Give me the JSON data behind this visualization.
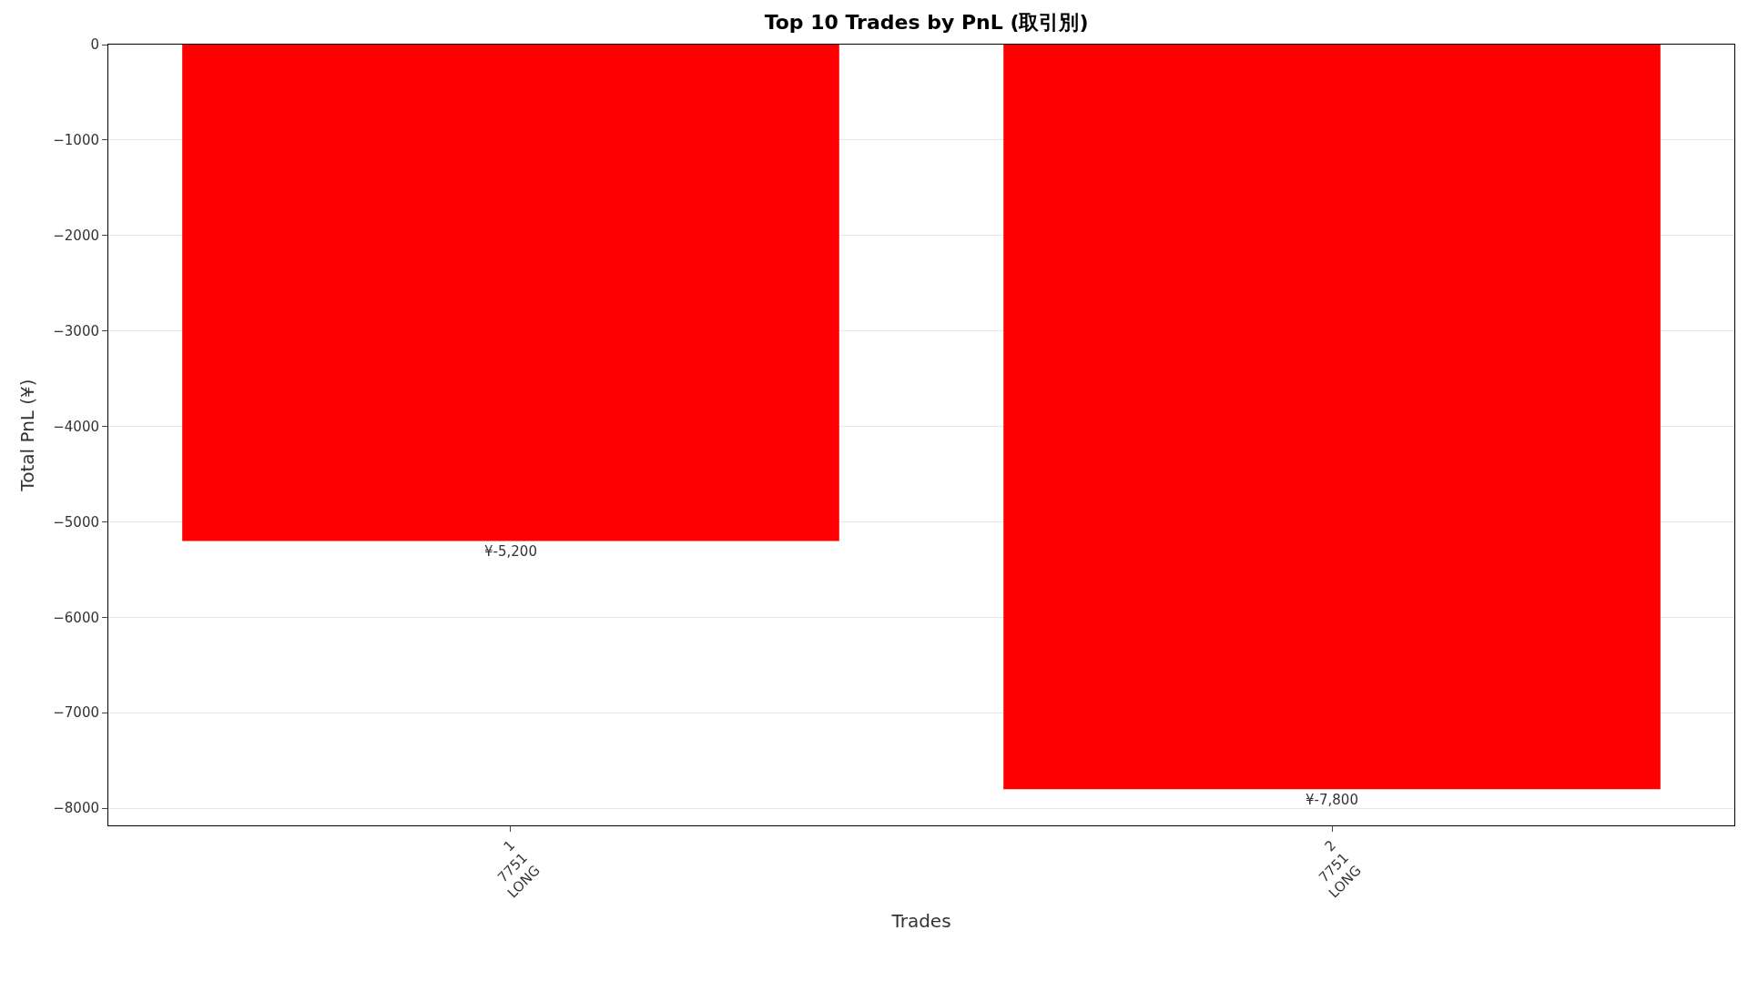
{
  "chart_data": {
    "type": "bar",
    "title": "Top 10 Trades by PnL (取引別)",
    "xlabel": "Trades",
    "ylabel": "Total PnL (¥)",
    "categories": [
      "1\n7751\nLONG",
      "2\n7751\nLONG"
    ],
    "values": [
      -5200,
      -7800
    ],
    "color": "#ff0000",
    "value_labels": [
      "¥-5,200",
      "¥-7,800"
    ],
    "ylim": [
      -8180,
      0
    ],
    "yticks": [
      {
        "value": 0,
        "label": "0"
      },
      {
        "value": -1000,
        "label": "−1000"
      },
      {
        "value": -2000,
        "label": "−2000"
      },
      {
        "value": -3000,
        "label": "−3000"
      },
      {
        "value": -4000,
        "label": "−4000"
      },
      {
        "value": -5000,
        "label": "−5000"
      },
      {
        "value": -6000,
        "label": "−6000"
      },
      {
        "value": -7000,
        "label": "−7000"
      },
      {
        "value": -8000,
        "label": "−8000"
      }
    ],
    "grid": "y",
    "legend": false
  }
}
